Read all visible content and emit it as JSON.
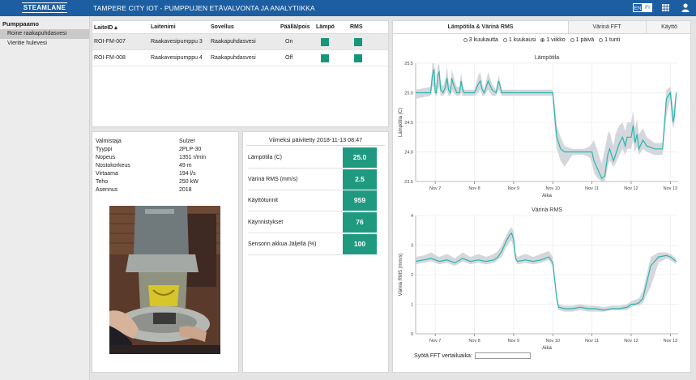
{
  "header": {
    "logo_text": "STEAMLANE",
    "title": "TAMPERE CITY IOT - PUMPPUJEN ETÄVALVONTA JA ANALYTIIKKA",
    "languages": [
      "EN",
      "FI"
    ],
    "active_language": "FI",
    "icons": [
      "grid-icon",
      "user-icon"
    ],
    "brand_color": "#1c5ea1"
  },
  "sidebar": {
    "group": "Pumppaamo",
    "items": [
      {
        "label": "Roine raakapuhdasvesi",
        "selected": true
      },
      {
        "label": "Vieritie hulevesi",
        "selected": false
      }
    ]
  },
  "device_table": {
    "columns": [
      "LaiteID ▴",
      "Laitenimi",
      "Sovellus",
      "Päällä/pois",
      "Lämpö",
      "RMS"
    ],
    "rows": [
      {
        "id": "ROI-FM-007",
        "name": "Raakavesipumppu 3",
        "app": "Raakapuhdasvesi",
        "state": "On",
        "lampo_status": "green",
        "rms_status": "green"
      },
      {
        "id": "ROI-FM-008",
        "name": "Raakavesipumppu 4",
        "app": "Raakapuhdasvesi",
        "state": "Off",
        "lampo_status": "green",
        "rms_status": "green"
      }
    ]
  },
  "specs": [
    {
      "key": "Valmistaja",
      "value": "Sulzer"
    },
    {
      "key": "Tyyppi",
      "value": "2PLP-30"
    },
    {
      "key": "Nopeus",
      "value": "1351 r/min"
    },
    {
      "key": "Nostokorkeus",
      "value": "49 m"
    },
    {
      "key": "Virtaama",
      "value": "194 l/s"
    },
    {
      "key": "Teho",
      "value": "250 kW"
    },
    {
      "key": "Asennus",
      "value": "2018"
    }
  ],
  "kpis": {
    "updated": "Viimeksi päivitetty 2018-11-13 08:47",
    "items": [
      {
        "label": "Lämpötila (C)",
        "value": "25.0"
      },
      {
        "label": "Värinä RMS (mm/s)",
        "value": "2.5"
      },
      {
        "label": "Käyttötunnit",
        "value": "959"
      },
      {
        "label": "Käynnistykset",
        "value": "76"
      },
      {
        "label": "Sensorin akkua Jäljellä (%)",
        "value": "100"
      }
    ],
    "tile_color": "#1f9a80"
  },
  "tabs": [
    {
      "label": "Lämpötila & Värinä RMS",
      "active": true
    },
    {
      "label": "Värinä FFT",
      "active": false
    },
    {
      "label": "Käyttö",
      "active": false
    }
  ],
  "range_options": [
    {
      "label": "3 kuukautta",
      "selected": false
    },
    {
      "label": "1 kuukausi",
      "selected": false
    },
    {
      "label": "1 viikko",
      "selected": true
    },
    {
      "label": "1 päivä",
      "selected": false
    },
    {
      "label": "1 tunti",
      "selected": false
    }
  ],
  "fft": {
    "label": "Syötä FFT vertailuaika:",
    "value": "",
    "placeholder": ""
  },
  "chart_data": [
    {
      "type": "line",
      "title": "Lämpötila",
      "xlabel": "Aika",
      "ylabel": "Lämpötila (C)",
      "x_ticks": [
        "Nov 7",
        "Nov 8",
        "Nov 9",
        "Nov 10",
        "Nov 11",
        "Nov 12",
        "Nov 13"
      ],
      "y_ticks": [
        "23.5",
        "24.0",
        "24.5",
        "25.0",
        "25.5"
      ],
      "ylim": [
        23.5,
        25.5
      ],
      "x_range_days": [
        6.5,
        13.2
      ],
      "grid": true,
      "line_color": "#2ab5ad",
      "band_color": "#cfd3d8",
      "x": [
        6.5,
        6.88,
        6.93,
        6.97,
        7.0,
        7.03,
        7.06,
        7.1,
        7.14,
        7.2,
        7.26,
        7.3,
        7.34,
        7.39,
        7.42,
        7.46,
        7.55,
        7.62,
        7.66,
        7.7,
        7.74,
        7.8,
        8.0,
        8.1,
        8.15,
        8.2,
        8.25,
        8.35,
        8.45,
        8.55,
        8.62,
        8.7,
        8.85,
        9.0,
        9.3,
        9.6,
        9.8,
        10.0,
        10.05,
        10.1,
        10.2,
        10.3,
        10.5,
        10.8,
        10.95,
        11.0,
        11.05,
        11.15,
        11.25,
        11.33,
        11.4,
        11.45,
        11.5,
        11.55,
        11.6,
        11.7,
        11.78,
        11.85,
        11.9,
        12.0,
        12.05,
        12.1,
        12.15,
        12.2,
        12.3,
        12.4,
        12.6,
        12.8,
        12.9,
        13.0,
        13.03,
        13.07,
        13.1,
        13.15
      ],
      "y": [
        25.0,
        25.0,
        25.3,
        25.4,
        25.0,
        25.0,
        25.3,
        25.35,
        25.05,
        25.0,
        25.1,
        25.25,
        25.05,
        25.0,
        25.25,
        25.15,
        25.0,
        25.0,
        25.2,
        25.05,
        25.0,
        25.0,
        25.0,
        25.15,
        25.2,
        25.05,
        25.0,
        25.2,
        25.05,
        25.0,
        25.2,
        25.0,
        25.0,
        25.0,
        25.0,
        25.0,
        25.0,
        25.0,
        24.6,
        24.25,
        24.05,
        24.0,
        24.0,
        24.0,
        24.0,
        24.0,
        23.85,
        23.7,
        23.55,
        23.6,
        23.95,
        24.05,
        23.95,
        23.85,
        23.95,
        24.15,
        24.25,
        24.1,
        24.25,
        24.25,
        24.45,
        24.15,
        24.3,
        24.05,
        24.2,
        24.1,
        24.05,
        24.05,
        24.9,
        25.0,
        24.8,
        24.5,
        24.6,
        25.0
      ],
      "band_low": [
        24.9,
        24.95,
        25.1,
        25.1,
        24.95,
        24.95,
        25.05,
        25.1,
        24.95,
        24.95,
        25.0,
        25.05,
        24.95,
        24.95,
        25.05,
        25.0,
        24.95,
        24.95,
        25.0,
        24.95,
        24.95,
        24.95,
        24.95,
        25.0,
        25.05,
        24.95,
        24.95,
        25.05,
        24.95,
        24.95,
        25.05,
        24.95,
        24.95,
        24.95,
        24.95,
        24.95,
        24.95,
        24.95,
        24.4,
        24.05,
        23.85,
        23.75,
        23.95,
        23.95,
        23.9,
        23.8,
        23.65,
        23.55,
        23.5,
        23.5,
        23.75,
        23.85,
        23.8,
        23.75,
        23.8,
        23.95,
        24.05,
        23.95,
        24.05,
        24.05,
        24.2,
        24.0,
        24.1,
        23.95,
        24.05,
        24.0,
        23.95,
        23.95,
        24.6,
        24.9,
        24.6,
        24.4,
        24.45,
        24.85
      ],
      "band_high": [
        25.05,
        25.1,
        25.5,
        25.5,
        25.2,
        25.1,
        25.45,
        25.5,
        25.2,
        25.1,
        25.25,
        25.45,
        25.2,
        25.1,
        25.4,
        25.3,
        25.1,
        25.1,
        25.35,
        25.15,
        25.05,
        25.05,
        25.05,
        25.3,
        25.35,
        25.15,
        25.05,
        25.35,
        25.15,
        25.05,
        25.3,
        25.05,
        25.05,
        25.05,
        25.05,
        25.05,
        25.05,
        25.05,
        24.8,
        24.45,
        24.25,
        24.1,
        24.05,
        24.05,
        24.1,
        24.15,
        24.2,
        24.0,
        23.8,
        24.05,
        24.3,
        24.35,
        24.2,
        24.1,
        24.3,
        24.45,
        24.5,
        24.35,
        24.5,
        24.5,
        24.7,
        24.4,
        24.55,
        24.3,
        24.4,
        24.25,
        24.15,
        24.15,
        25.05,
        25.1,
        25.0,
        24.7,
        24.8,
        25.05
      ]
    },
    {
      "type": "line",
      "title": "Värinä RMS",
      "xlabel": "Aika",
      "ylabel": "Värinä RMS (mm/s)",
      "x_ticks": [
        "Nov 7",
        "Nov 8",
        "Nov 9",
        "Nov 10",
        "Nov 11",
        "Nov 12",
        "Nov 13"
      ],
      "y_ticks": [
        "0",
        "1",
        "2",
        "3",
        "4"
      ],
      "ylim": [
        0,
        4
      ],
      "x_range_days": [
        6.5,
        13.2
      ],
      "grid": true,
      "line_color": "#2ab5ad",
      "band_color": "#cfd3d8",
      "x": [
        6.5,
        6.7,
        6.9,
        7.1,
        7.3,
        7.5,
        7.7,
        7.9,
        8.1,
        8.3,
        8.5,
        8.6,
        8.7,
        8.8,
        8.9,
        8.95,
        9.0,
        9.05,
        9.1,
        9.3,
        9.5,
        9.7,
        9.9,
        10.0,
        10.05,
        10.1,
        10.15,
        10.3,
        10.5,
        10.7,
        10.9,
        11.1,
        11.3,
        11.5,
        11.7,
        11.9,
        12.0,
        12.1,
        12.2,
        12.3,
        12.5,
        12.7,
        12.9,
        13.0,
        13.1,
        13.15
      ],
      "y": [
        2.45,
        2.5,
        2.55,
        2.45,
        2.5,
        2.4,
        2.55,
        2.45,
        2.5,
        2.45,
        2.5,
        2.6,
        2.8,
        3.1,
        3.35,
        3.4,
        3.2,
        2.55,
        2.45,
        2.5,
        2.45,
        2.5,
        2.6,
        2.4,
        1.8,
        1.2,
        0.9,
        0.85,
        0.85,
        0.9,
        0.85,
        0.85,
        0.8,
        0.85,
        0.85,
        0.9,
        1.0,
        1.0,
        1.05,
        1.2,
        2.3,
        2.6,
        2.65,
        2.6,
        2.5,
        2.45
      ],
      "band_low": [
        2.35,
        2.4,
        2.45,
        2.35,
        2.4,
        2.3,
        2.45,
        2.35,
        2.4,
        2.35,
        2.4,
        2.5,
        2.6,
        2.9,
        3.1,
        3.15,
        2.9,
        2.45,
        2.35,
        2.4,
        2.35,
        2.4,
        2.5,
        2.25,
        1.6,
        1.05,
        0.8,
        0.75,
        0.75,
        0.8,
        0.75,
        0.75,
        0.75,
        0.8,
        0.8,
        0.8,
        0.9,
        0.95,
        0.95,
        1.05,
        1.6,
        2.4,
        2.55,
        2.5,
        2.4,
        2.35
      ],
      "band_high": [
        2.6,
        2.65,
        2.75,
        2.6,
        2.7,
        2.55,
        2.75,
        2.6,
        2.7,
        2.6,
        2.7,
        2.8,
        3.0,
        3.3,
        3.55,
        3.6,
        3.45,
        2.75,
        2.6,
        2.7,
        2.6,
        2.7,
        2.8,
        2.6,
        2.0,
        1.35,
        1.0,
        0.95,
        0.95,
        1.0,
        0.95,
        0.95,
        0.9,
        0.95,
        0.95,
        1.0,
        1.1,
        1.15,
        1.2,
        1.45,
        2.6,
        2.75,
        2.75,
        2.7,
        2.6,
        2.55
      ]
    }
  ]
}
